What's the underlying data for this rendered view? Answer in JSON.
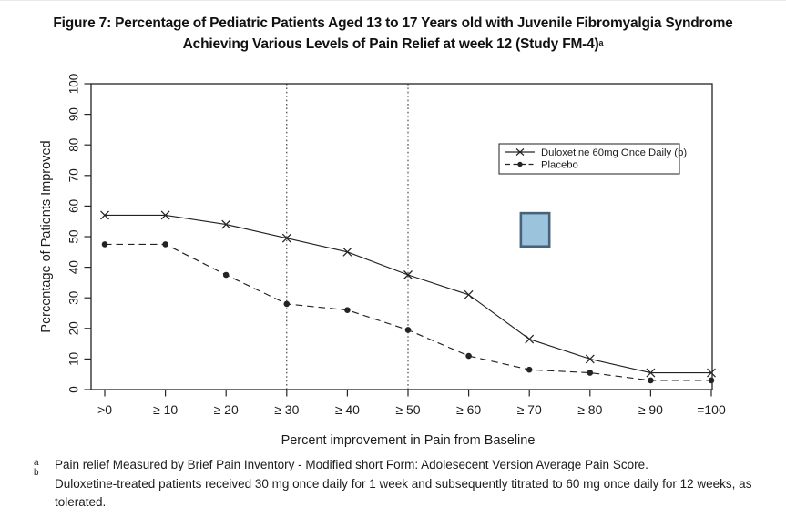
{
  "figure": {
    "title_line1": "Figure 7: Percentage of Pediatric Patients Aged 13 to 17 Years old with Juvenile Fibromyalgia Syndrome",
    "title_line2": "Achieving Various Levels of Pain Relief at week 12 (Study FM-4)",
    "title_superscript": "a"
  },
  "chart_data": {
    "type": "line",
    "title": "",
    "xlabel": "Percent improvement in Pain from Baseline",
    "ylabel": "Percentage of Patients Improved",
    "categories": [
      ">0",
      "≥ 10",
      "≥ 20",
      "≥ 30",
      "≥ 40",
      "≥ 50",
      "≥ 60",
      "≥ 70",
      "≥ 80",
      "≥ 90",
      "=100"
    ],
    "ylim": [
      0,
      100
    ],
    "ytick_step": 10,
    "grid": false,
    "frame": "full-box",
    "reference_line_category_indices": [
      3,
      5
    ],
    "reference_line_style": "dotted-vertical",
    "legend_position": "upper-right-inside",
    "series": [
      {
        "name": "Duloxetine 60mg Once Daily (b)",
        "marker": "x",
        "line": "solid",
        "color": "#222222",
        "values": [
          57,
          57,
          54,
          49.5,
          45,
          37.5,
          31,
          16.5,
          10,
          5.5,
          5.5
        ]
      },
      {
        "name": "Placebo",
        "marker": "dot",
        "line": "dashed",
        "color": "#222222",
        "values": [
          47.5,
          47.5,
          37.5,
          28,
          26,
          19.5,
          11,
          6.5,
          5.5,
          3,
          3
        ]
      }
    ],
    "annotation_box": {
      "description": "light-blue rectangle artifact",
      "x0_index": 6.86,
      "x1_index": 7.33,
      "y0_value": 46.8,
      "y1_value": 57.7,
      "fill": "#9cc3dc",
      "border": "#47627b"
    }
  },
  "footnotes": {
    "marker_a": "a",
    "marker_b": "b",
    "text_a": "Pain relief Measured by Brief Pain Inventory - Modified short Form: Adolesecent Version Average Pain Score.",
    "text_b": "Duloxetine-treated patients received 30 mg once daily for 1 week and subsequently titrated to 60 mg once daily for 12 weeks, as tolerated."
  }
}
